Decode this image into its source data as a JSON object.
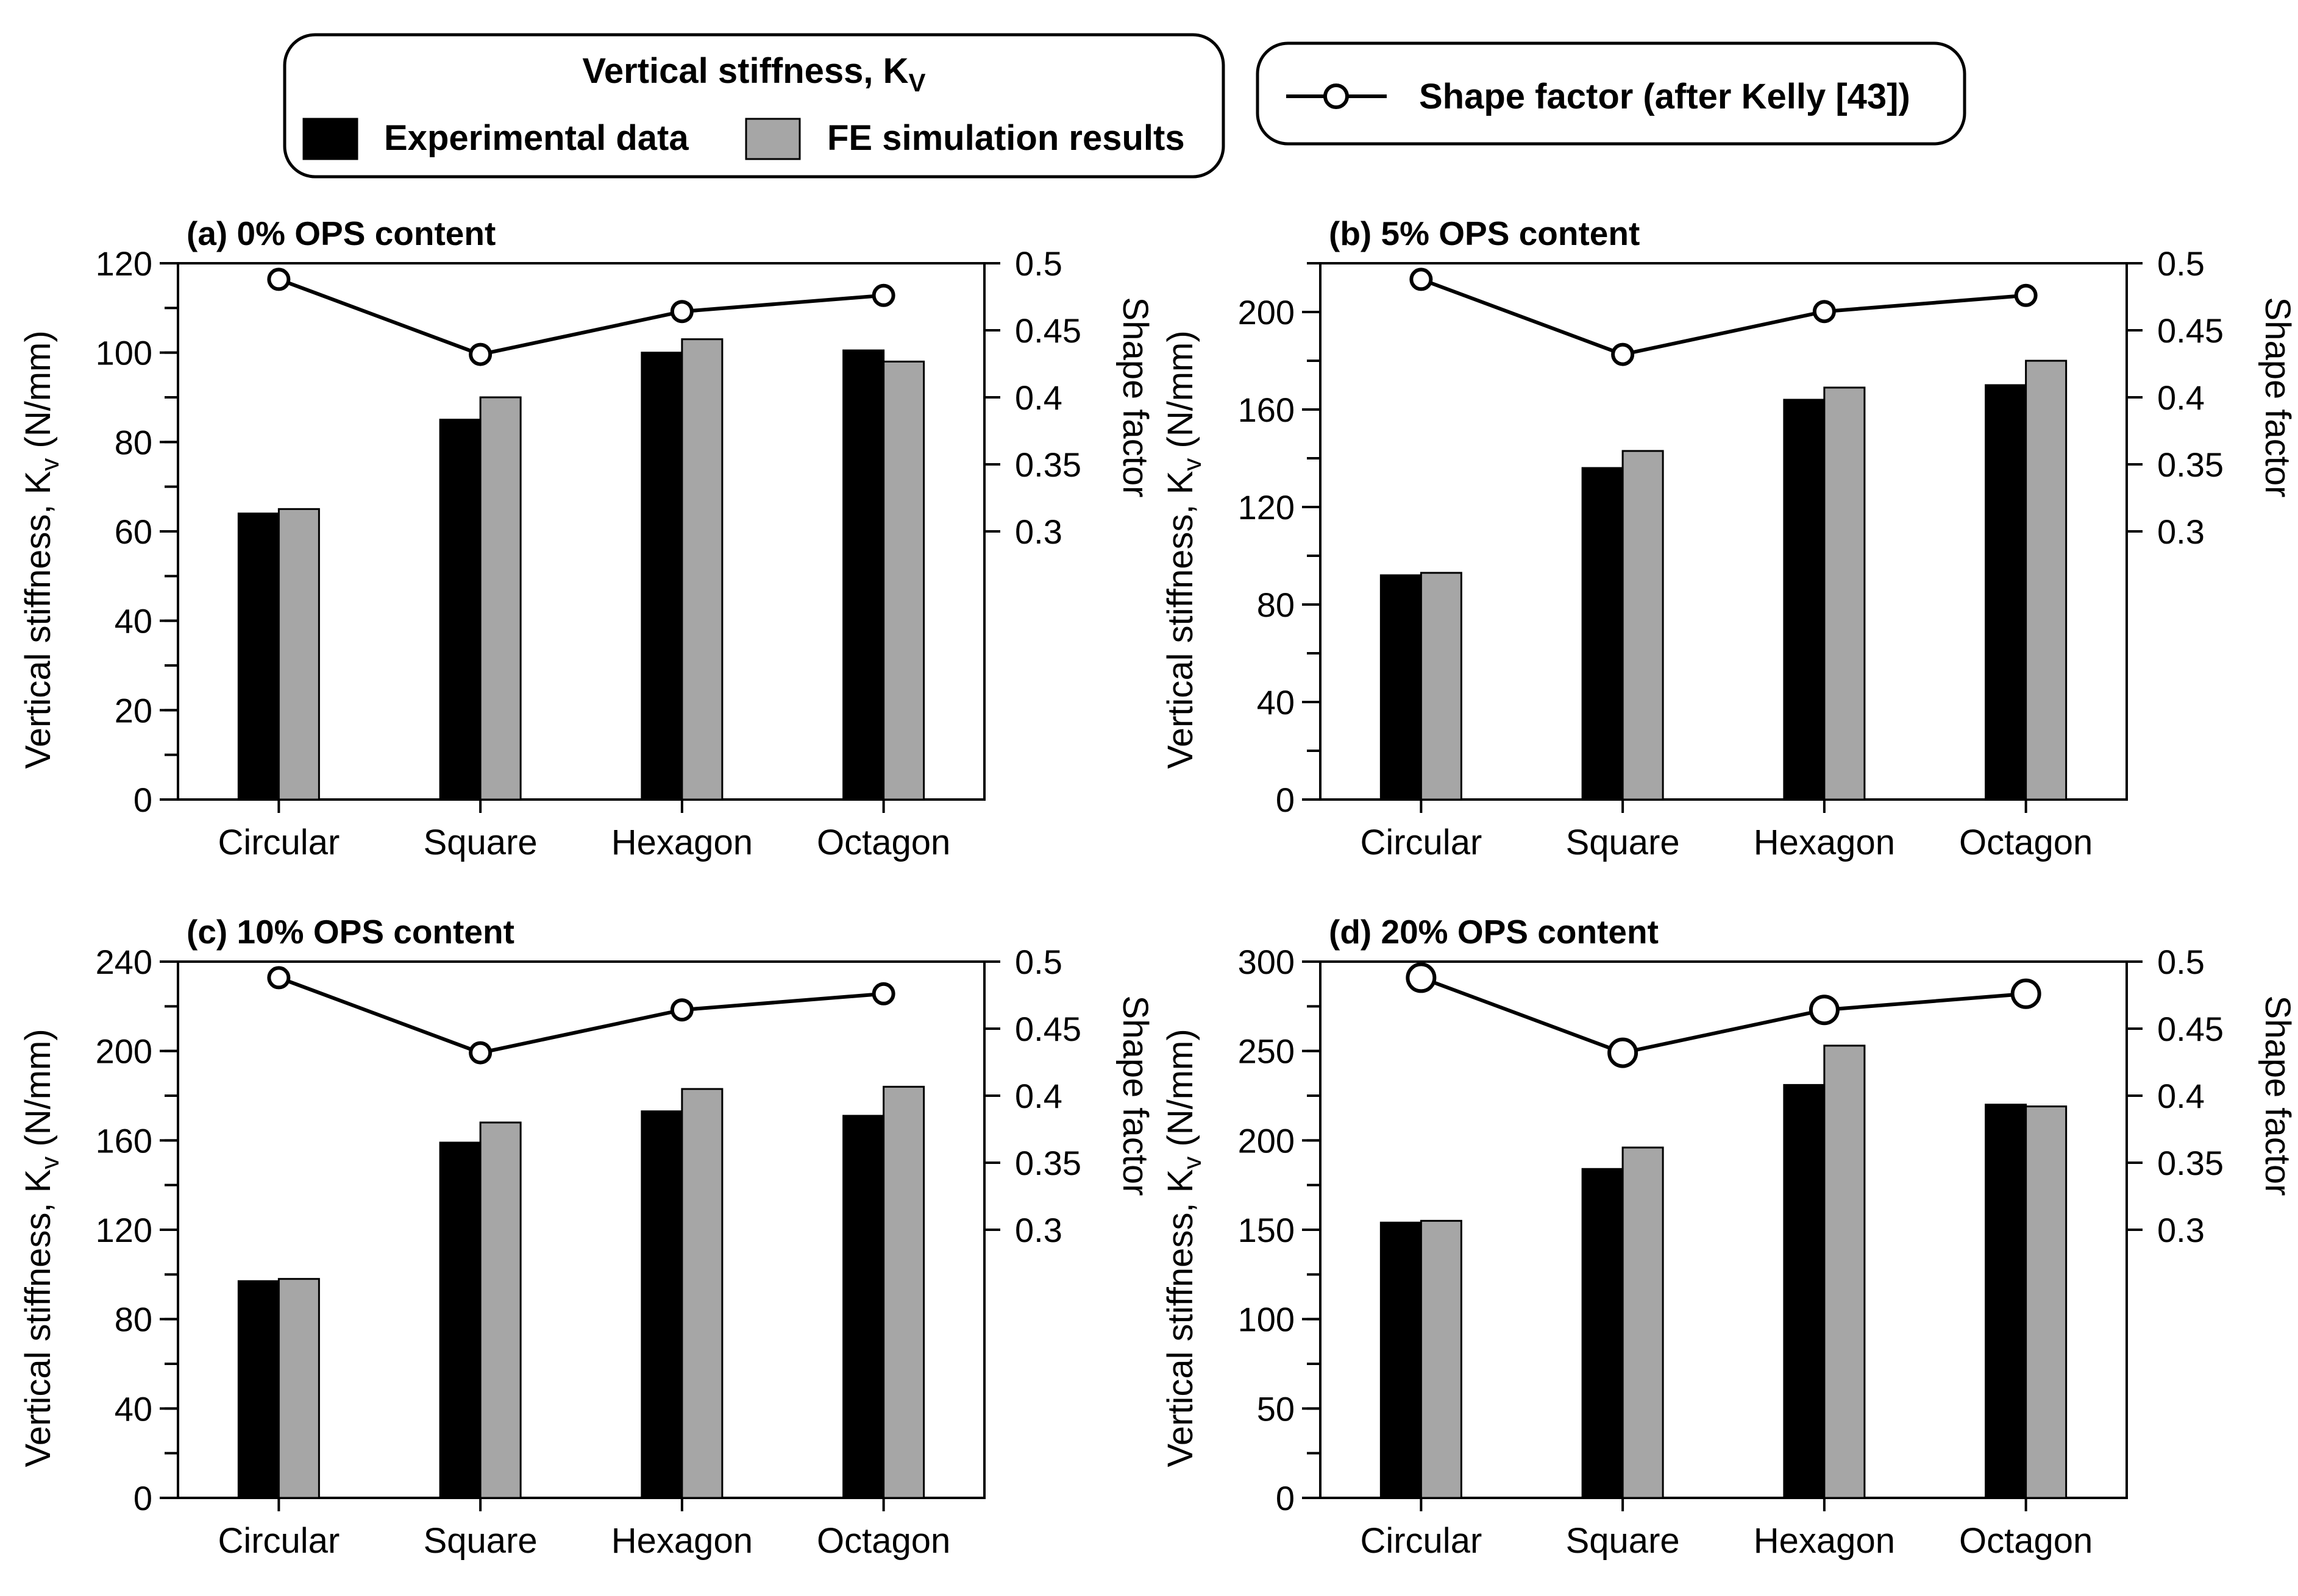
{
  "legend": {
    "vertical_group_title": "Vertical stiffness, K",
    "vertical_group_subscript": "V",
    "experimental_label": "Experimental data",
    "fe_label": "FE simulation results",
    "shape_factor_label": "Shape factor (after Kelly [43])"
  },
  "colors": {
    "experimental": "#000000",
    "fe": "#a6a6a6",
    "shape_line": "#000000",
    "marker_fill": "#ffffff"
  },
  "chart_data": [
    {
      "type": "bar",
      "title": "(a) 0% OPS content",
      "categories": [
        "Circular",
        "Square",
        "Hexagon",
        "Octagon"
      ],
      "ylabel": "Vertical stiffness, K",
      "ylabel_sub": "v",
      "ylabel_unit": " (N/mm)",
      "ylim": [
        0,
        120
      ],
      "yticks": [
        0,
        20,
        40,
        60,
        80,
        100,
        120
      ],
      "yminor_step": 10,
      "y2label": "Shape factor",
      "y2lim": [
        0.1,
        0.5
      ],
      "y2ticks": [
        0.3,
        0.35,
        0.4,
        0.45,
        0.5
      ],
      "y2tick_labels": [
        "0.3",
        "0.35",
        "0.4",
        "0.45",
        "0.5"
      ],
      "series": [
        {
          "name": "Experimental data",
          "values": [
            64,
            85,
            100,
            100.5
          ]
        },
        {
          "name": "FE simulation results",
          "values": [
            65,
            90,
            103,
            98
          ]
        }
      ],
      "line": {
        "name": "Shape factor (after Kelly [43])",
        "values": [
          0.488,
          0.432,
          0.464,
          0.476
        ]
      }
    },
    {
      "type": "bar",
      "title": "(b) 5% OPS content",
      "categories": [
        "Circular",
        "Square",
        "Hexagon",
        "Octagon"
      ],
      "ylabel": "Vertical stiffness, K",
      "ylabel_sub": "v",
      "ylabel_unit": " (N/mm)",
      "ylim": [
        0,
        220
      ],
      "yticks": [
        0,
        40,
        80,
        120,
        160,
        200
      ],
      "yminor_step": 20,
      "y2label": "Shape factor",
      "y2lim": [
        0.1,
        0.5
      ],
      "y2ticks": [
        0.3,
        0.35,
        0.4,
        0.45,
        0.5
      ],
      "y2tick_labels": [
        "0.3",
        "0.35",
        "0.4",
        "0.45",
        "0.5"
      ],
      "series": [
        {
          "name": "Experimental data",
          "values": [
            92,
            136,
            164,
            170
          ]
        },
        {
          "name": "FE simulation results",
          "values": [
            93,
            143,
            169,
            180
          ]
        }
      ],
      "line": {
        "name": "Shape factor (after Kelly [43])",
        "values": [
          0.488,
          0.432,
          0.464,
          0.476
        ]
      }
    },
    {
      "type": "bar",
      "title": "(c) 10% OPS content",
      "categories": [
        "Circular",
        "Square",
        "Hexagon",
        "Octagon"
      ],
      "ylabel": "Vertical stiffness, K",
      "ylabel_sub": "v",
      "ylabel_unit": " (N/mm)",
      "ylim": [
        0,
        240
      ],
      "yticks": [
        0,
        40,
        80,
        120,
        160,
        200,
        240
      ],
      "yminor_step": 20,
      "y2label": "Shape factor",
      "y2lim": [
        0.1,
        0.5
      ],
      "y2ticks": [
        0.3,
        0.35,
        0.4,
        0.45,
        0.5
      ],
      "y2tick_labels": [
        "0.3",
        "0.35",
        "0.4",
        "0.45",
        "0.5"
      ],
      "series": [
        {
          "name": "Experimental data",
          "values": [
            97,
            159,
            173,
            171
          ]
        },
        {
          "name": "FE simulation results",
          "values": [
            98,
            168,
            183,
            184
          ]
        }
      ],
      "line": {
        "name": "Shape factor (after Kelly [43])",
        "values": [
          0.488,
          0.432,
          0.464,
          0.476
        ]
      }
    },
    {
      "type": "bar",
      "title": "(d) 20% OPS content",
      "categories": [
        "Circular",
        "Square",
        "Hexagon",
        "Octagon"
      ],
      "ylabel": "Vertical stiffness, K",
      "ylabel_sub": "v",
      "ylabel_unit": " (N/mm)",
      "ylim": [
        0,
        300
      ],
      "yticks": [
        0,
        50,
        100,
        150,
        200,
        250,
        300
      ],
      "yminor_step": 25,
      "y2label": "Shape factor",
      "y2lim": [
        0.1,
        0.5
      ],
      "y2ticks": [
        0.3,
        0.35,
        0.4,
        0.45,
        0.5
      ],
      "y2tick_labels": [
        "0.3",
        "0.35",
        "0.4",
        "0.45",
        "0.5"
      ],
      "series": [
        {
          "name": "Experimental data",
          "values": [
            154,
            184,
            231,
            220
          ]
        },
        {
          "name": "FE simulation results",
          "values": [
            155,
            196,
            253,
            219
          ]
        }
      ],
      "line": {
        "name": "Shape factor (after Kelly [43])",
        "values": [
          0.488,
          0.432,
          0.464,
          0.476
        ]
      }
    }
  ]
}
